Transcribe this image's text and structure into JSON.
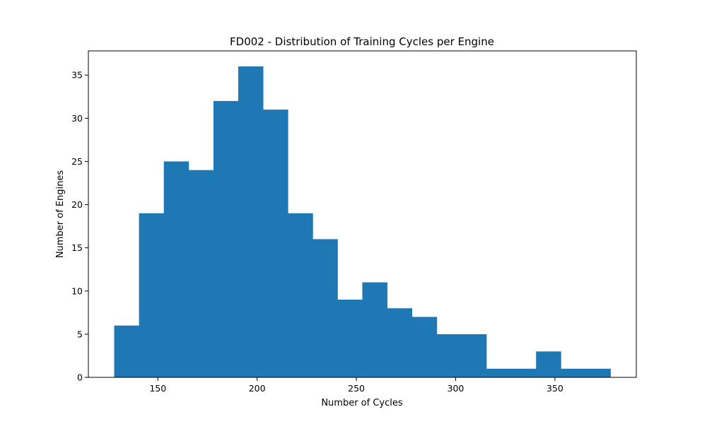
{
  "chart_data": {
    "type": "bar",
    "title": "FD002 - Distribution of Training Cycles per Engine",
    "xlabel": "Number of Cycles",
    "ylabel": "Number of Engines",
    "bin_start": 128,
    "bin_end": 378,
    "bins": 20,
    "values": [
      6,
      19,
      25,
      24,
      32,
      36,
      31,
      19,
      16,
      9,
      11,
      8,
      7,
      5,
      5,
      1,
      1,
      3,
      1,
      1
    ],
    "xlim": [
      115,
      391
    ],
    "ylim": [
      0,
      37.8
    ],
    "xticks": [
      150,
      200,
      250,
      300,
      350
    ],
    "yticks": [
      0,
      5,
      10,
      15,
      20,
      25,
      30,
      35
    ],
    "bar_color": "#1f77b4",
    "grid": false,
    "legend": "none"
  }
}
